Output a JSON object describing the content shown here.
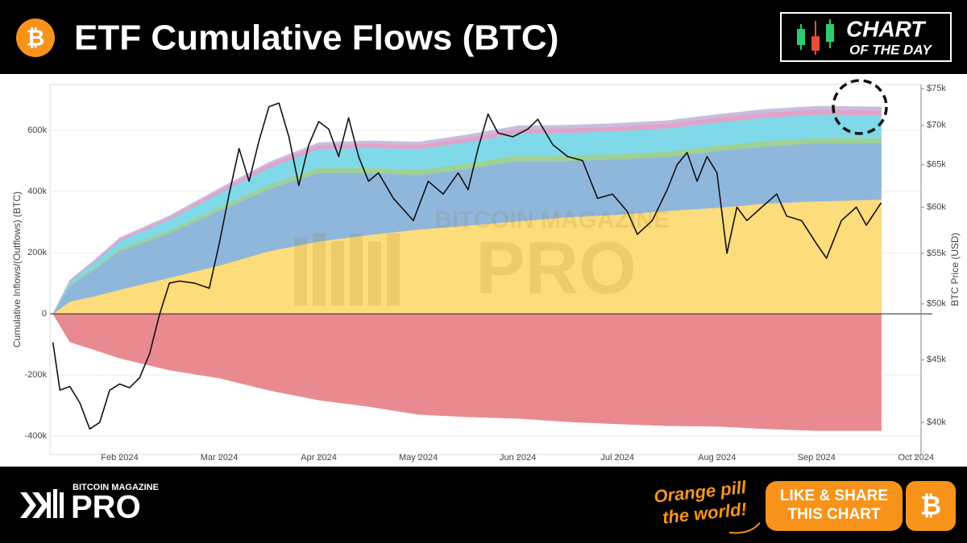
{
  "header": {
    "icon": "₿",
    "title": "ETF Cumulative Flows (BTC)",
    "badge": [
      "CHART",
      "OF THE DAY"
    ]
  },
  "watermark": [
    "BITCOIN MAGAZINE",
    "PRO"
  ],
  "footer": {
    "brand_top": "BITCOIN MAGAZINE",
    "brand": "PRO",
    "slogan": [
      "Orange pill",
      "the world!"
    ],
    "button": [
      "LIKE & SHARE",
      "THIS CHART"
    ],
    "icon": "₿"
  },
  "chart_data": {
    "type": "area",
    "stacked": true,
    "ylabel": "Cumulative Inflows/(Outflows) (BTC)",
    "y2label": "BTC Price (USD)",
    "xlim": [
      1.3,
      10.05
    ],
    "xticks": [
      {
        "value": 2,
        "label": "Feb 2024"
      },
      {
        "value": 3,
        "label": "Mar 2024"
      },
      {
        "value": 4,
        "label": "Apr 2024"
      },
      {
        "value": 5,
        "label": "May 2024"
      },
      {
        "value": 6,
        "label": "Jun 2024"
      },
      {
        "value": 7,
        "label": "Jul 2024"
      },
      {
        "value": 8,
        "label": "Aug 2024"
      },
      {
        "value": 9,
        "label": "Sep 2024"
      },
      {
        "value": 10,
        "label": "Oct 2024"
      }
    ],
    "ylim": [
      -460000,
      750000
    ],
    "yticks": [
      {
        "value": -400000,
        "label": "-400k"
      },
      {
        "value": -200000,
        "label": "-200k"
      },
      0,
      {
        "value": 200000,
        "label": "200k"
      },
      {
        "value": 400000,
        "label": "400k"
      },
      {
        "value": 600000,
        "label": "600k"
      }
    ],
    "y2lim": [
      37650,
      75600
    ],
    "y2log": true,
    "y2ticks": [
      {
        "value": 40000,
        "label": "$40k"
      },
      {
        "value": 45000,
        "label": "$45k"
      },
      {
        "value": 50000,
        "label": "$50k"
      },
      {
        "value": 55000,
        "label": "$55k"
      },
      {
        "value": 60000,
        "label": "$60k"
      },
      {
        "value": 65000,
        "label": "$65k"
      },
      {
        "value": 70000,
        "label": "$70k"
      },
      {
        "value": 75000,
        "label": "$75k"
      }
    ],
    "grid": true,
    "x": [
      1.33,
      1.5,
      1.75,
      2.0,
      2.5,
      3.0,
      3.5,
      4.0,
      4.5,
      5.0,
      5.5,
      6.0,
      6.5,
      7.0,
      7.5,
      8.0,
      8.5,
      9.0,
      9.65
    ],
    "series": [
      {
        "color": "#e98a90",
        "values": [
          0,
          -92000,
          -118000,
          -145000,
          -184000,
          -210000,
          -250000,
          -282000,
          -303000,
          -329000,
          -337000,
          -342000,
          -353000,
          -360000,
          -366000,
          -368000,
          -376000,
          -382000,
          -382000
        ]
      },
      {
        "color": "#fddc7c",
        "values": [
          0,
          40000,
          58000,
          79000,
          118000,
          158000,
          205000,
          237000,
          258000,
          276000,
          289000,
          303000,
          316000,
          324000,
          337000,
          347000,
          361000,
          368000,
          374000
        ]
      },
      {
        "color": "#8fb7dc",
        "values": [
          0,
          52000,
          87000,
          126000,
          145000,
          179000,
          203000,
          224000,
          203000,
          177000,
          185000,
          197000,
          184000,
          181000,
          176000,
          185000,
          186000,
          190000,
          184000
        ]
      },
      {
        "color": "#9dd196",
        "values": [
          0,
          4000,
          6000,
          8000,
          10000,
          12000,
          14000,
          16000,
          17000,
          18000,
          18000,
          18000,
          18000,
          18000,
          18000,
          18000,
          18000,
          18000,
          17000
        ]
      },
      {
        "color": "#80d9e8",
        "values": [
          0,
          10000,
          18000,
          25000,
          35000,
          45000,
          55000,
          62000,
          65000,
          68000,
          70000,
          72000,
          74000,
          75000,
          76000,
          76000,
          77000,
          76000,
          75000
        ]
      },
      {
        "color": "#e2a3ca",
        "values": [
          0,
          3000,
          5000,
          7000,
          8000,
          10000,
          12000,
          13000,
          14000,
          14000,
          14000,
          15000,
          15000,
          15000,
          15000,
          16000,
          16000,
          16000,
          16000
        ]
      },
      {
        "color": "#c9bddf",
        "values": [
          0,
          2000,
          3000,
          4000,
          5000,
          6000,
          7000,
          8000,
          9000,
          9000,
          10000,
          10000,
          10000,
          10000,
          10000,
          10000,
          11000,
          11000,
          11000
        ]
      }
    ],
    "price": {
      "type": "line",
      "axis": "y2",
      "color": "#111111",
      "x": [
        1.33,
        1.4,
        1.5,
        1.6,
        1.7,
        1.8,
        1.9,
        2.0,
        2.1,
        2.2,
        2.3,
        2.4,
        2.5,
        2.6,
        2.75,
        2.9,
        3.0,
        3.1,
        3.2,
        3.3,
        3.4,
        3.5,
        3.6,
        3.7,
        3.8,
        3.9,
        4.0,
        4.1,
        4.2,
        4.3,
        4.4,
        4.5,
        4.6,
        4.75,
        4.95,
        5.1,
        5.25,
        5.4,
        5.5,
        5.6,
        5.7,
        5.8,
        5.95,
        6.1,
        6.2,
        6.35,
        6.5,
        6.65,
        6.8,
        6.95,
        7.1,
        7.2,
        7.35,
        7.5,
        7.6,
        7.7,
        7.8,
        7.9,
        8.0,
        8.1,
        8.2,
        8.3,
        8.45,
        8.6,
        8.7,
        8.85,
        9.0,
        9.1,
        9.25,
        9.4,
        9.5,
        9.65
      ],
      "values": [
        46500,
        42500,
        42800,
        41500,
        39500,
        40000,
        42500,
        43000,
        42700,
        43500,
        45500,
        49000,
        52000,
        52200,
        52000,
        51500,
        56000,
        61500,
        67000,
        63000,
        68000,
        72500,
        73000,
        68500,
        62500,
        67500,
        70500,
        69500,
        66000,
        71000,
        66000,
        63000,
        64000,
        61000,
        58500,
        63000,
        61500,
        64000,
        62000,
        67000,
        71500,
        69000,
        68500,
        69500,
        70800,
        67500,
        66000,
        65500,
        61000,
        61500,
        59500,
        57000,
        58500,
        62000,
        65000,
        66500,
        63000,
        66000,
        64000,
        55000,
        60000,
        58500,
        60000,
        61500,
        59000,
        58500,
        56000,
        54500,
        58500,
        60000,
        58000,
        60500
      ]
    }
  }
}
